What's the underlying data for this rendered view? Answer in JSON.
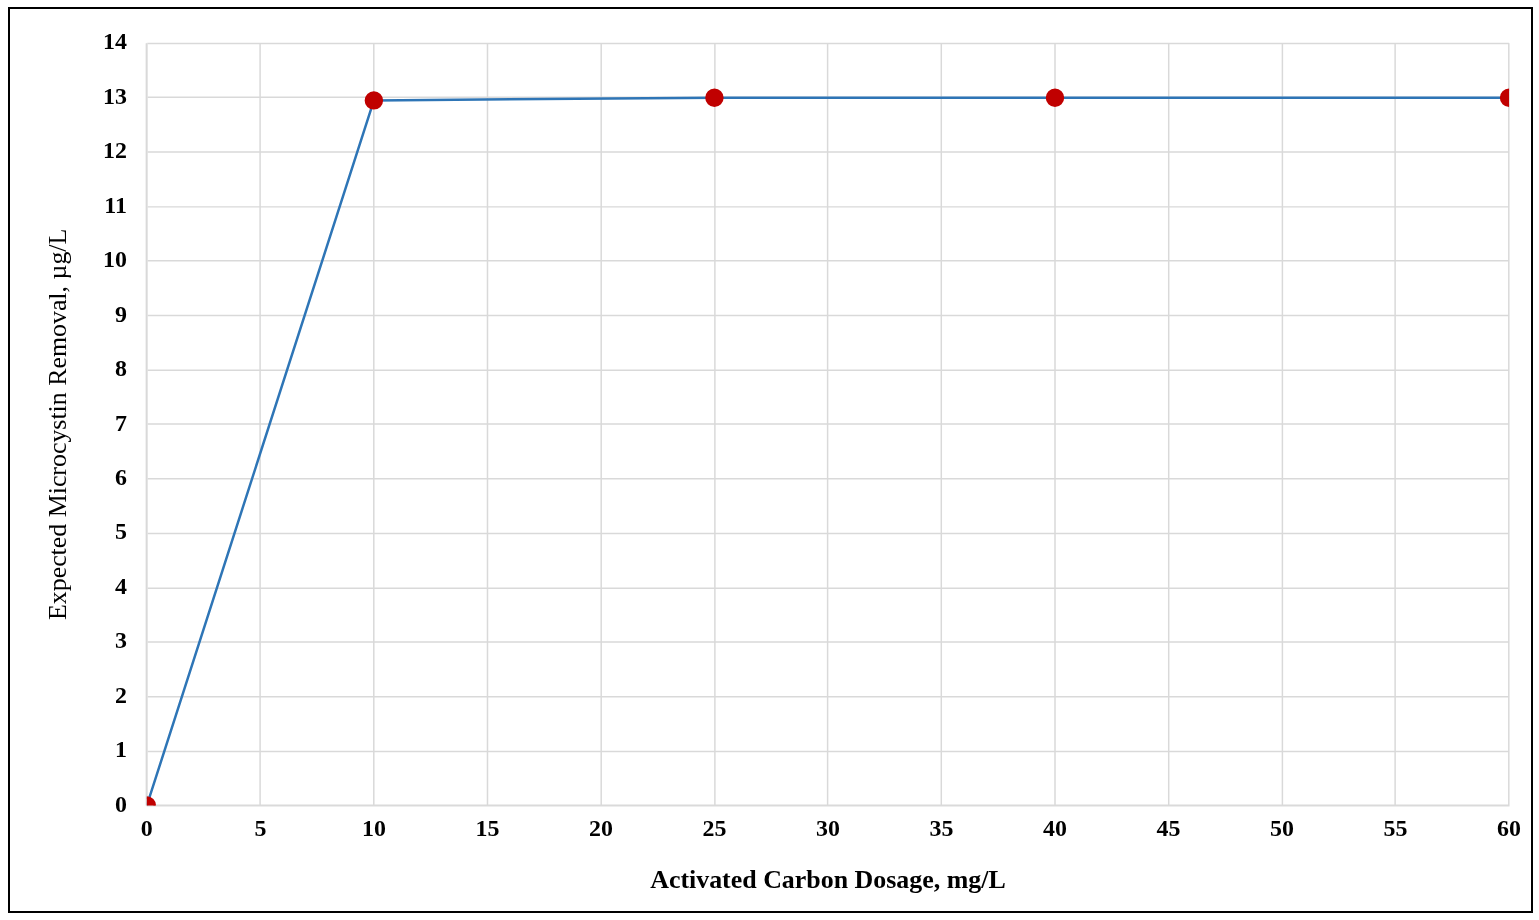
{
  "chart_data": {
    "type": "line",
    "xlabel": "Activated Carbon Dosage, mg/L",
    "ylabel": "Expected Microcystin Removal, µg/L",
    "x": [
      0,
      10,
      25,
      40,
      60
    ],
    "series": [
      {
        "color": "#2e75b6",
        "colors": [
          "#c00000",
          "#c00000",
          "#c00000",
          "#c00000",
          "#c00000"
        ],
        "values": [
          0,
          12.95,
          13,
          13,
          13
        ]
      }
    ],
    "marker": "circle",
    "line_style": "solid",
    "xlim": [
      0,
      60
    ],
    "xticks": [
      0,
      5,
      10,
      15,
      20,
      25,
      30,
      35,
      40,
      45,
      50,
      55,
      60
    ],
    "ylim": [
      0,
      14
    ],
    "yticks": [
      0,
      1,
      2,
      3,
      4,
      5,
      6,
      7,
      8,
      9,
      10,
      11,
      12,
      13,
      14
    ],
    "grid": true,
    "legend": false
  }
}
